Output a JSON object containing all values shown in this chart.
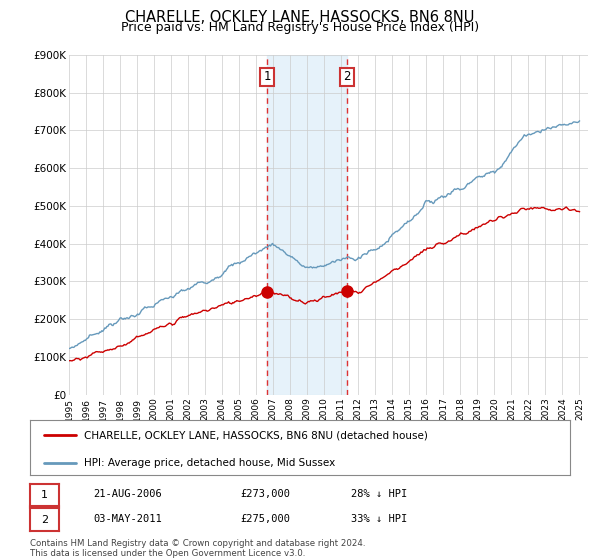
{
  "title": "CHARELLE, OCKLEY LANE, HASSOCKS, BN6 8NU",
  "subtitle": "Price paid vs. HM Land Registry's House Price Index (HPI)",
  "title_fontsize": 10.5,
  "subtitle_fontsize": 9,
  "ylim": [
    0,
    900000
  ],
  "yticks": [
    0,
    100000,
    200000,
    300000,
    400000,
    500000,
    600000,
    700000,
    800000,
    900000
  ],
  "ytick_labels": [
    "£0",
    "£100K",
    "£200K",
    "£300K",
    "£400K",
    "£500K",
    "£600K",
    "£700K",
    "£800K",
    "£900K"
  ],
  "xlim_start": 1995.0,
  "xlim_end": 2025.5,
  "xticks": [
    1995,
    1996,
    1997,
    1998,
    1999,
    2000,
    2001,
    2002,
    2003,
    2004,
    2005,
    2006,
    2007,
    2008,
    2009,
    2010,
    2011,
    2012,
    2013,
    2014,
    2015,
    2016,
    2017,
    2018,
    2019,
    2020,
    2021,
    2022,
    2023,
    2024,
    2025
  ],
  "red_line_color": "#cc0000",
  "blue_line_color": "#6699bb",
  "highlight_fill": "#d6eaf8",
  "highlight_alpha": 0.6,
  "vline_color": "#dd3333",
  "marker1_x": 2006.64,
  "marker1_y": 273000,
  "marker2_x": 2011.33,
  "marker2_y": 275000,
  "annotation1_label": "1",
  "annotation2_label": "2",
  "legend_label1": "CHARELLE, OCKLEY LANE, HASSOCKS, BN6 8NU (detached house)",
  "legend_label2": "HPI: Average price, detached house, Mid Sussex",
  "table_row1": [
    "1",
    "21-AUG-2006",
    "£273,000",
    "28% ↓ HPI"
  ],
  "table_row2": [
    "2",
    "03-MAY-2011",
    "£275,000",
    "33% ↓ HPI"
  ],
  "footer": "Contains HM Land Registry data © Crown copyright and database right 2024.\nThis data is licensed under the Open Government Licence v3.0.",
  "background_color": "#ffffff",
  "plot_bg_color": "#ffffff",
  "grid_color": "#cccccc"
}
